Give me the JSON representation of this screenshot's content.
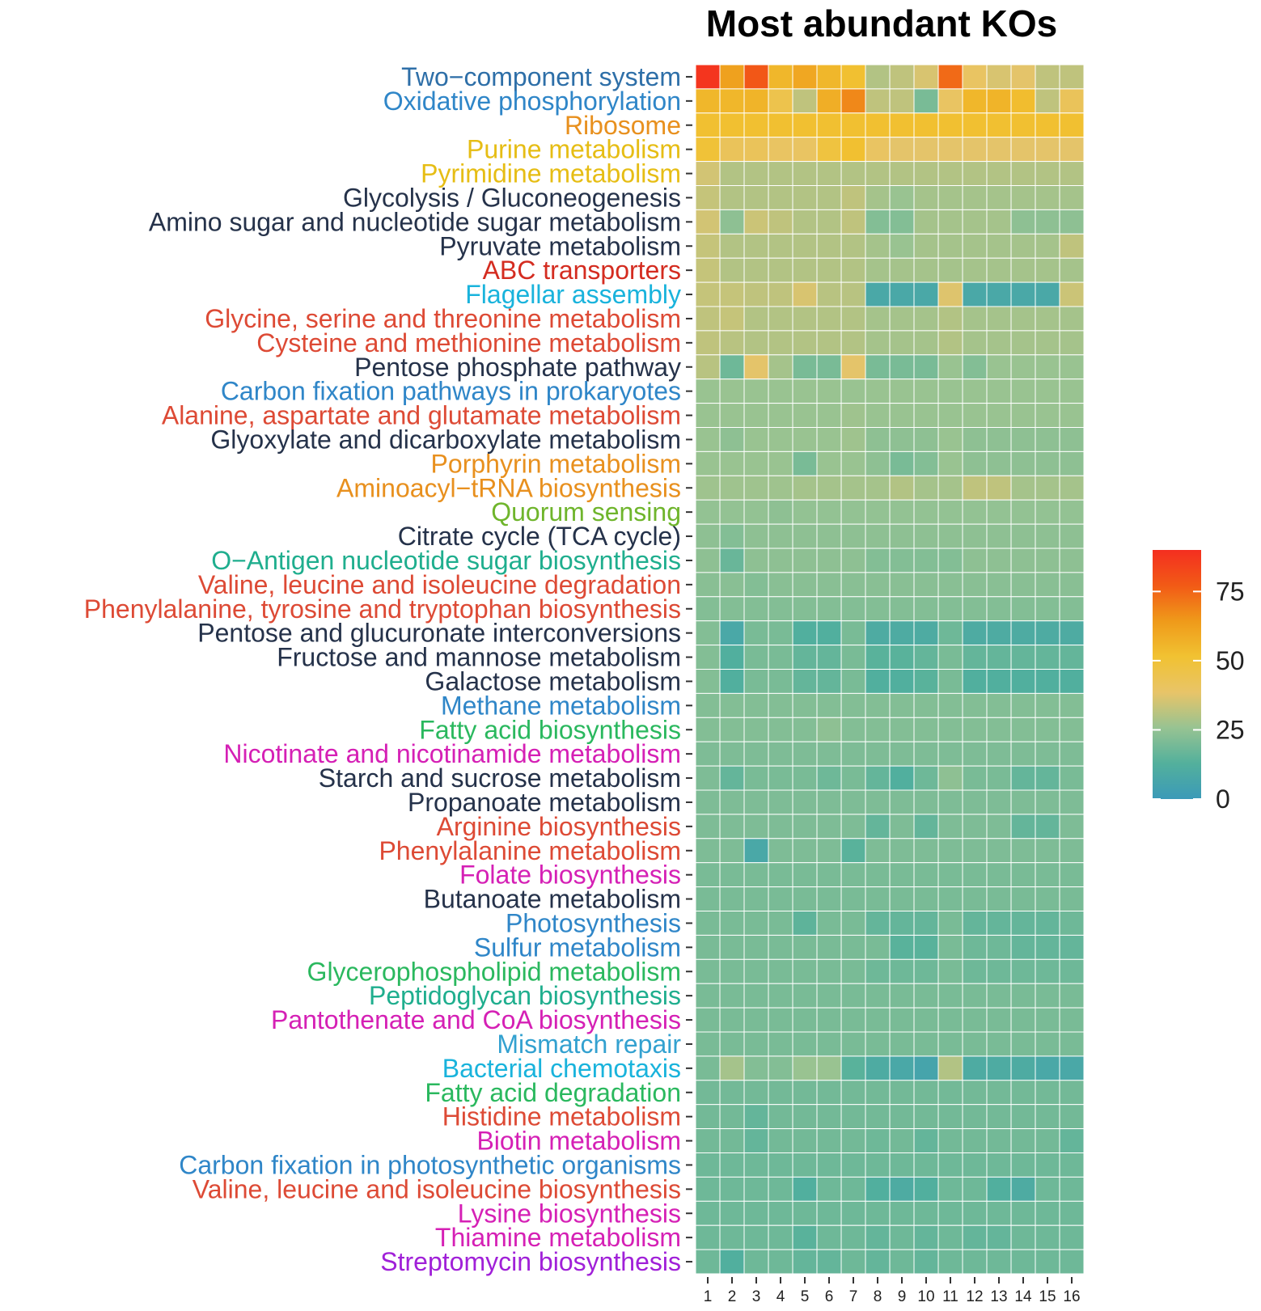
{
  "chart_data": {
    "type": "heatmap",
    "title": "Most abundant KOs",
    "xlabel": "",
    "ylabel": "",
    "columns": [
      "1",
      "2",
      "3",
      "4",
      "5",
      "6",
      "7",
      "8",
      "9",
      "10",
      "11",
      "12",
      "13",
      "14",
      "15",
      "16"
    ],
    "rows": [
      {
        "label": "Two−component system",
        "color": "#2e6fa8",
        "values": [
          88,
          62,
          78,
          55,
          60,
          55,
          52,
          30,
          32,
          36,
          74,
          40,
          36,
          38,
          32,
          32
        ]
      },
      {
        "label": "Oxidative phosphorylation",
        "color": "#2f86c8",
        "values": [
          55,
          55,
          56,
          45,
          32,
          58,
          68,
          32,
          32,
          20,
          40,
          55,
          56,
          53,
          32,
          42
        ]
      },
      {
        "label": "Ribosome",
        "color": "#e8901e",
        "values": [
          52,
          52,
          52,
          52,
          52,
          52,
          52,
          52,
          52,
          52,
          52,
          52,
          52,
          52,
          52,
          52
        ]
      },
      {
        "label": "Purine metabolism",
        "color": "#e6bd14",
        "values": [
          50,
          42,
          42,
          40,
          40,
          48,
          52,
          40,
          38,
          38,
          38,
          38,
          38,
          38,
          38,
          38
        ]
      },
      {
        "label": "Pyrimidine metabolism",
        "color": "#e6bd14",
        "values": [
          35,
          30,
          30,
          30,
          30,
          30,
          30,
          30,
          30,
          30,
          30,
          30,
          30,
          30,
          30,
          30
        ]
      },
      {
        "label": "Glycolysis / Gluconeogenesis",
        "color": "#25324a",
        "values": [
          33,
          30,
          30,
          30,
          30,
          30,
          32,
          28,
          26,
          28,
          28,
          28,
          28,
          28,
          28,
          28
        ]
      },
      {
        "label": "Amino sugar and nucleotide sugar metabolism",
        "color": "#25324a",
        "values": [
          35,
          24,
          34,
          32,
          30,
          30,
          32,
          22,
          22,
          28,
          28,
          28,
          28,
          24,
          24,
          24
        ]
      },
      {
        "label": "Pyruvate metabolism",
        "color": "#25324a",
        "values": [
          33,
          30,
          30,
          30,
          30,
          30,
          30,
          28,
          26,
          28,
          28,
          28,
          28,
          28,
          28,
          32
        ]
      },
      {
        "label": "ABC transporters",
        "color": "#d42c20",
        "values": [
          33,
          30,
          30,
          30,
          30,
          30,
          30,
          28,
          28,
          28,
          28,
          28,
          28,
          28,
          28,
          28
        ]
      },
      {
        "label": "Flagellar assembly",
        "color": "#19b3dc",
        "values": [
          33,
          33,
          32,
          32,
          36,
          31,
          31,
          8,
          8,
          8,
          37,
          8,
          8,
          8,
          8,
          34
        ]
      },
      {
        "label": "Glycine, serine and threonine metabolism",
        "color": "#dd4a35",
        "values": [
          32,
          33,
          30,
          30,
          30,
          30,
          30,
          28,
          28,
          28,
          30,
          28,
          28,
          28,
          28,
          28
        ]
      },
      {
        "label": "Cysteine and methionine metabolism",
        "color": "#dd4a35",
        "values": [
          32,
          31,
          30,
          30,
          30,
          30,
          30,
          28,
          28,
          28,
          30,
          28,
          28,
          28,
          28,
          28
        ]
      },
      {
        "label": "Pentose phosphate pathway",
        "color": "#25324a",
        "values": [
          31,
          18,
          38,
          28,
          20,
          20,
          38,
          20,
          20,
          20,
          26,
          22,
          26,
          26,
          26,
          26
        ]
      },
      {
        "label": "Carbon fixation pathways in prokaryotes",
        "color": "#2f86c8",
        "values": [
          26,
          26,
          26,
          26,
          26,
          26,
          26,
          26,
          26,
          26,
          26,
          26,
          26,
          26,
          26,
          26
        ]
      },
      {
        "label": "Alanine, aspartate and glutamate metabolism",
        "color": "#dd4a35",
        "values": [
          26,
          26,
          26,
          26,
          26,
          26,
          27,
          26,
          26,
          26,
          26,
          26,
          26,
          26,
          26,
          26
        ]
      },
      {
        "label": "Glyoxylate and dicarboxylate metabolism",
        "color": "#25324a",
        "values": [
          26,
          24,
          26,
          26,
          26,
          26,
          27,
          24,
          24,
          24,
          26,
          24,
          24,
          24,
          24,
          24
        ]
      },
      {
        "label": "Porphyrin metabolism",
        "color": "#e8901e",
        "values": [
          26,
          26,
          26,
          26,
          20,
          26,
          26,
          24,
          20,
          22,
          26,
          24,
          24,
          24,
          24,
          24
        ]
      },
      {
        "label": "Aminoacyl−tRNA biosynthesis",
        "color": "#e8901e",
        "values": [
          27,
          27,
          27,
          27,
          28,
          28,
          28,
          28,
          30,
          28,
          28,
          32,
          32,
          28,
          28,
          28
        ]
      },
      {
        "label": "Quorum sensing",
        "color": "#6fb52c",
        "values": [
          25,
          25,
          25,
          24,
          25,
          25,
          25,
          25,
          25,
          25,
          25,
          25,
          25,
          25,
          25,
          25
        ]
      },
      {
        "label": "Citrate cycle (TCA cycle)",
        "color": "#25324a",
        "values": [
          24,
          22,
          24,
          24,
          24,
          24,
          24,
          24,
          24,
          24,
          24,
          24,
          24,
          24,
          24,
          24
        ]
      },
      {
        "label": "O−Antigen nucleotide sugar biosynthesis",
        "color": "#1fae8e",
        "values": [
          24,
          17,
          24,
          24,
          24,
          24,
          24,
          22,
          22,
          22,
          22,
          24,
          24,
          24,
          24,
          24
        ]
      },
      {
        "label": "Valine, leucine and isoleucine degradation",
        "color": "#dd4a35",
        "values": [
          23,
          23,
          22,
          23,
          23,
          23,
          23,
          23,
          23,
          23,
          23,
          23,
          23,
          23,
          23,
          23
        ]
      },
      {
        "label": "Phenylalanine, tyrosine and tryptophan biosynthesis",
        "color": "#dd4a35",
        "values": [
          22,
          22,
          22,
          22,
          22,
          22,
          22,
          22,
          22,
          22,
          22,
          22,
          22,
          22,
          22,
          22
        ]
      },
      {
        "label": "Pentose and glucuronate interconversions",
        "color": "#25324a",
        "values": [
          22,
          8,
          20,
          20,
          12,
          12,
          20,
          10,
          10,
          10,
          18,
          10,
          10,
          10,
          10,
          10
        ]
      },
      {
        "label": "Fructose and mannose metabolism",
        "color": "#25324a",
        "values": [
          22,
          12,
          20,
          20,
          16,
          16,
          20,
          14,
          14,
          16,
          20,
          16,
          16,
          16,
          16,
          16
        ]
      },
      {
        "label": "Galactose metabolism",
        "color": "#25324a",
        "values": [
          22,
          12,
          20,
          20,
          16,
          16,
          20,
          12,
          12,
          14,
          20,
          12,
          12,
          12,
          12,
          12
        ]
      },
      {
        "label": "Methane metabolism",
        "color": "#2f86c8",
        "values": [
          22,
          22,
          22,
          22,
          22,
          22,
          22,
          22,
          22,
          22,
          22,
          22,
          22,
          22,
          22,
          22
        ]
      },
      {
        "label": "Fatty acid biosynthesis",
        "color": "#2ab85e",
        "values": [
          22,
          22,
          22,
          22,
          22,
          24,
          22,
          22,
          22,
          22,
          22,
          22,
          22,
          22,
          22,
          22
        ]
      },
      {
        "label": "Nicotinate and nicotinamide metabolism",
        "color": "#d520b5",
        "values": [
          21,
          21,
          21,
          21,
          21,
          21,
          21,
          21,
          21,
          21,
          21,
          21,
          21,
          21,
          21,
          21
        ]
      },
      {
        "label": "Starch and sucrose metabolism",
        "color": "#25324a",
        "values": [
          21,
          16,
          20,
          20,
          20,
          18,
          20,
          16,
          12,
          18,
          24,
          20,
          20,
          16,
          16,
          20
        ]
      },
      {
        "label": "Propanoate metabolism",
        "color": "#25324a",
        "values": [
          21,
          21,
          21,
          21,
          21,
          21,
          21,
          21,
          21,
          21,
          21,
          21,
          21,
          21,
          21,
          21
        ]
      },
      {
        "label": "Arginine biosynthesis",
        "color": "#dd4a35",
        "values": [
          21,
          21,
          21,
          21,
          21,
          21,
          21,
          16,
          21,
          16,
          21,
          21,
          21,
          16,
          16,
          21
        ]
      },
      {
        "label": "Phenylalanine metabolism",
        "color": "#dd4a35",
        "values": [
          21,
          21,
          8,
          21,
          21,
          21,
          14,
          21,
          21,
          21,
          21,
          21,
          21,
          21,
          21,
          21
        ]
      },
      {
        "label": "Folate biosynthesis",
        "color": "#d520b5",
        "values": [
          20,
          20,
          20,
          20,
          20,
          20,
          20,
          20,
          20,
          20,
          20,
          20,
          20,
          20,
          20,
          20
        ]
      },
      {
        "label": "Butanoate metabolism",
        "color": "#25324a",
        "values": [
          20,
          20,
          20,
          20,
          20,
          20,
          20,
          20,
          20,
          20,
          20,
          20,
          20,
          20,
          20,
          20
        ]
      },
      {
        "label": "Photosynthesis",
        "color": "#2f86c8",
        "values": [
          20,
          20,
          20,
          20,
          15,
          20,
          20,
          16,
          16,
          16,
          20,
          16,
          16,
          16,
          16,
          18
        ]
      },
      {
        "label": "Sulfur metabolism",
        "color": "#2f86c8",
        "values": [
          20,
          20,
          20,
          20,
          20,
          20,
          20,
          20,
          14,
          14,
          20,
          18,
          18,
          16,
          16,
          16
        ]
      },
      {
        "label": "Glycerophospholipid metabolism",
        "color": "#2ab85e",
        "values": [
          20,
          20,
          20,
          20,
          20,
          20,
          20,
          18,
          18,
          18,
          20,
          18,
          18,
          18,
          18,
          18
        ]
      },
      {
        "label": "Peptidoglycan biosynthesis",
        "color": "#1fae8e",
        "values": [
          20,
          20,
          20,
          20,
          20,
          20,
          20,
          20,
          20,
          20,
          20,
          20,
          20,
          20,
          20,
          20
        ]
      },
      {
        "label": "Pantothenate and CoA biosynthesis",
        "color": "#d520b5",
        "values": [
          20,
          20,
          20,
          20,
          20,
          20,
          20,
          20,
          20,
          20,
          20,
          20,
          20,
          20,
          20,
          20
        ]
      },
      {
        "label": "Mismatch repair",
        "color": "#33a1d0",
        "values": [
          20,
          20,
          20,
          20,
          20,
          20,
          20,
          20,
          20,
          20,
          20,
          20,
          20,
          20,
          20,
          20
        ]
      },
      {
        "label": "Bacterial chemotaxis",
        "color": "#19b3dc",
        "values": [
          20,
          28,
          22,
          22,
          26,
          26,
          14,
          10,
          8,
          6,
          30,
          10,
          10,
          10,
          8,
          8
        ]
      },
      {
        "label": "Fatty acid degradation",
        "color": "#2ab85e",
        "values": [
          19,
          19,
          19,
          19,
          19,
          19,
          19,
          19,
          19,
          19,
          19,
          19,
          19,
          19,
          19,
          19
        ]
      },
      {
        "label": "Histidine metabolism",
        "color": "#dd4a35",
        "values": [
          19,
          19,
          16,
          19,
          19,
          19,
          19,
          19,
          19,
          19,
          19,
          19,
          19,
          19,
          19,
          19
        ]
      },
      {
        "label": "Biotin metabolism",
        "color": "#d520b5",
        "values": [
          19,
          19,
          16,
          19,
          19,
          19,
          19,
          18,
          19,
          16,
          19,
          19,
          19,
          19,
          19,
          16
        ]
      },
      {
        "label": "Carbon fixation in photosynthetic organisms",
        "color": "#2f86c8",
        "values": [
          18,
          18,
          18,
          18,
          18,
          18,
          18,
          18,
          18,
          18,
          18,
          18,
          18,
          18,
          18,
          18
        ]
      },
      {
        "label": "Valine, leucine and isoleucine biosynthesis",
        "color": "#dd4a35",
        "values": [
          18,
          18,
          18,
          18,
          12,
          18,
          18,
          12,
          10,
          12,
          18,
          18,
          12,
          10,
          18,
          18
        ]
      },
      {
        "label": "Lysine biosynthesis",
        "color": "#d520b5",
        "values": [
          18,
          18,
          18,
          18,
          18,
          18,
          18,
          18,
          18,
          18,
          18,
          18,
          18,
          18,
          18,
          18
        ]
      },
      {
        "label": "Thiamine metabolism",
        "color": "#d520b5",
        "values": [
          18,
          18,
          18,
          18,
          14,
          18,
          18,
          16,
          18,
          16,
          18,
          16,
          16,
          18,
          18,
          18
        ]
      },
      {
        "label": "Streptomycin biosynthesis",
        "color": "#a020d8",
        "values": [
          18,
          12,
          18,
          18,
          16,
          16,
          18,
          16,
          18,
          16,
          18,
          18,
          18,
          18,
          18,
          18
        ]
      }
    ],
    "legend": {
      "title": "",
      "min": 0,
      "max": 90,
      "ticks": [
        0,
        25,
        50,
        75
      ],
      "colors": [
        "#3b9ab8",
        "#53b09c",
        "#97c392",
        "#e8c468",
        "#f1c232",
        "#ef9a1a",
        "#f25a16",
        "#f42e20"
      ],
      "position": "right"
    }
  }
}
